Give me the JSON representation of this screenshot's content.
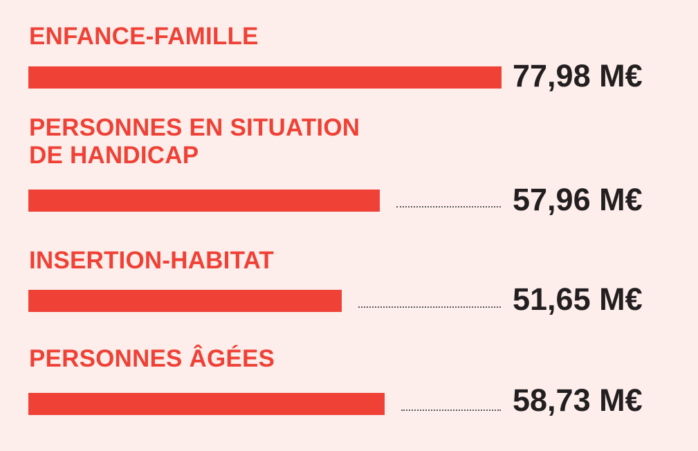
{
  "chart_data": {
    "type": "bar",
    "orientation": "horizontal",
    "unit": "M€",
    "categories": [
      "ENFANCE-FAMILLE",
      "PERSONNES EN SITUATION\nDE HANDICAP",
      "INSERTION-HABITAT",
      "PERSONNES ÂGÉES"
    ],
    "values": [
      77.98,
      57.96,
      51.65,
      58.73
    ],
    "value_labels": [
      "77,98 M€",
      "57,96 M€",
      "51,65 M€",
      "58,73 M€"
    ],
    "title": "",
    "xlabel": "",
    "ylabel": "",
    "xlim": [
      0,
      77.98
    ],
    "grid": false,
    "legend": "none"
  },
  "colors": {
    "background": "#fdeeeb",
    "bar": "#ef4136",
    "category_text": "#ef4136",
    "value_text": "#231f20",
    "leader_dots": "#555555"
  }
}
